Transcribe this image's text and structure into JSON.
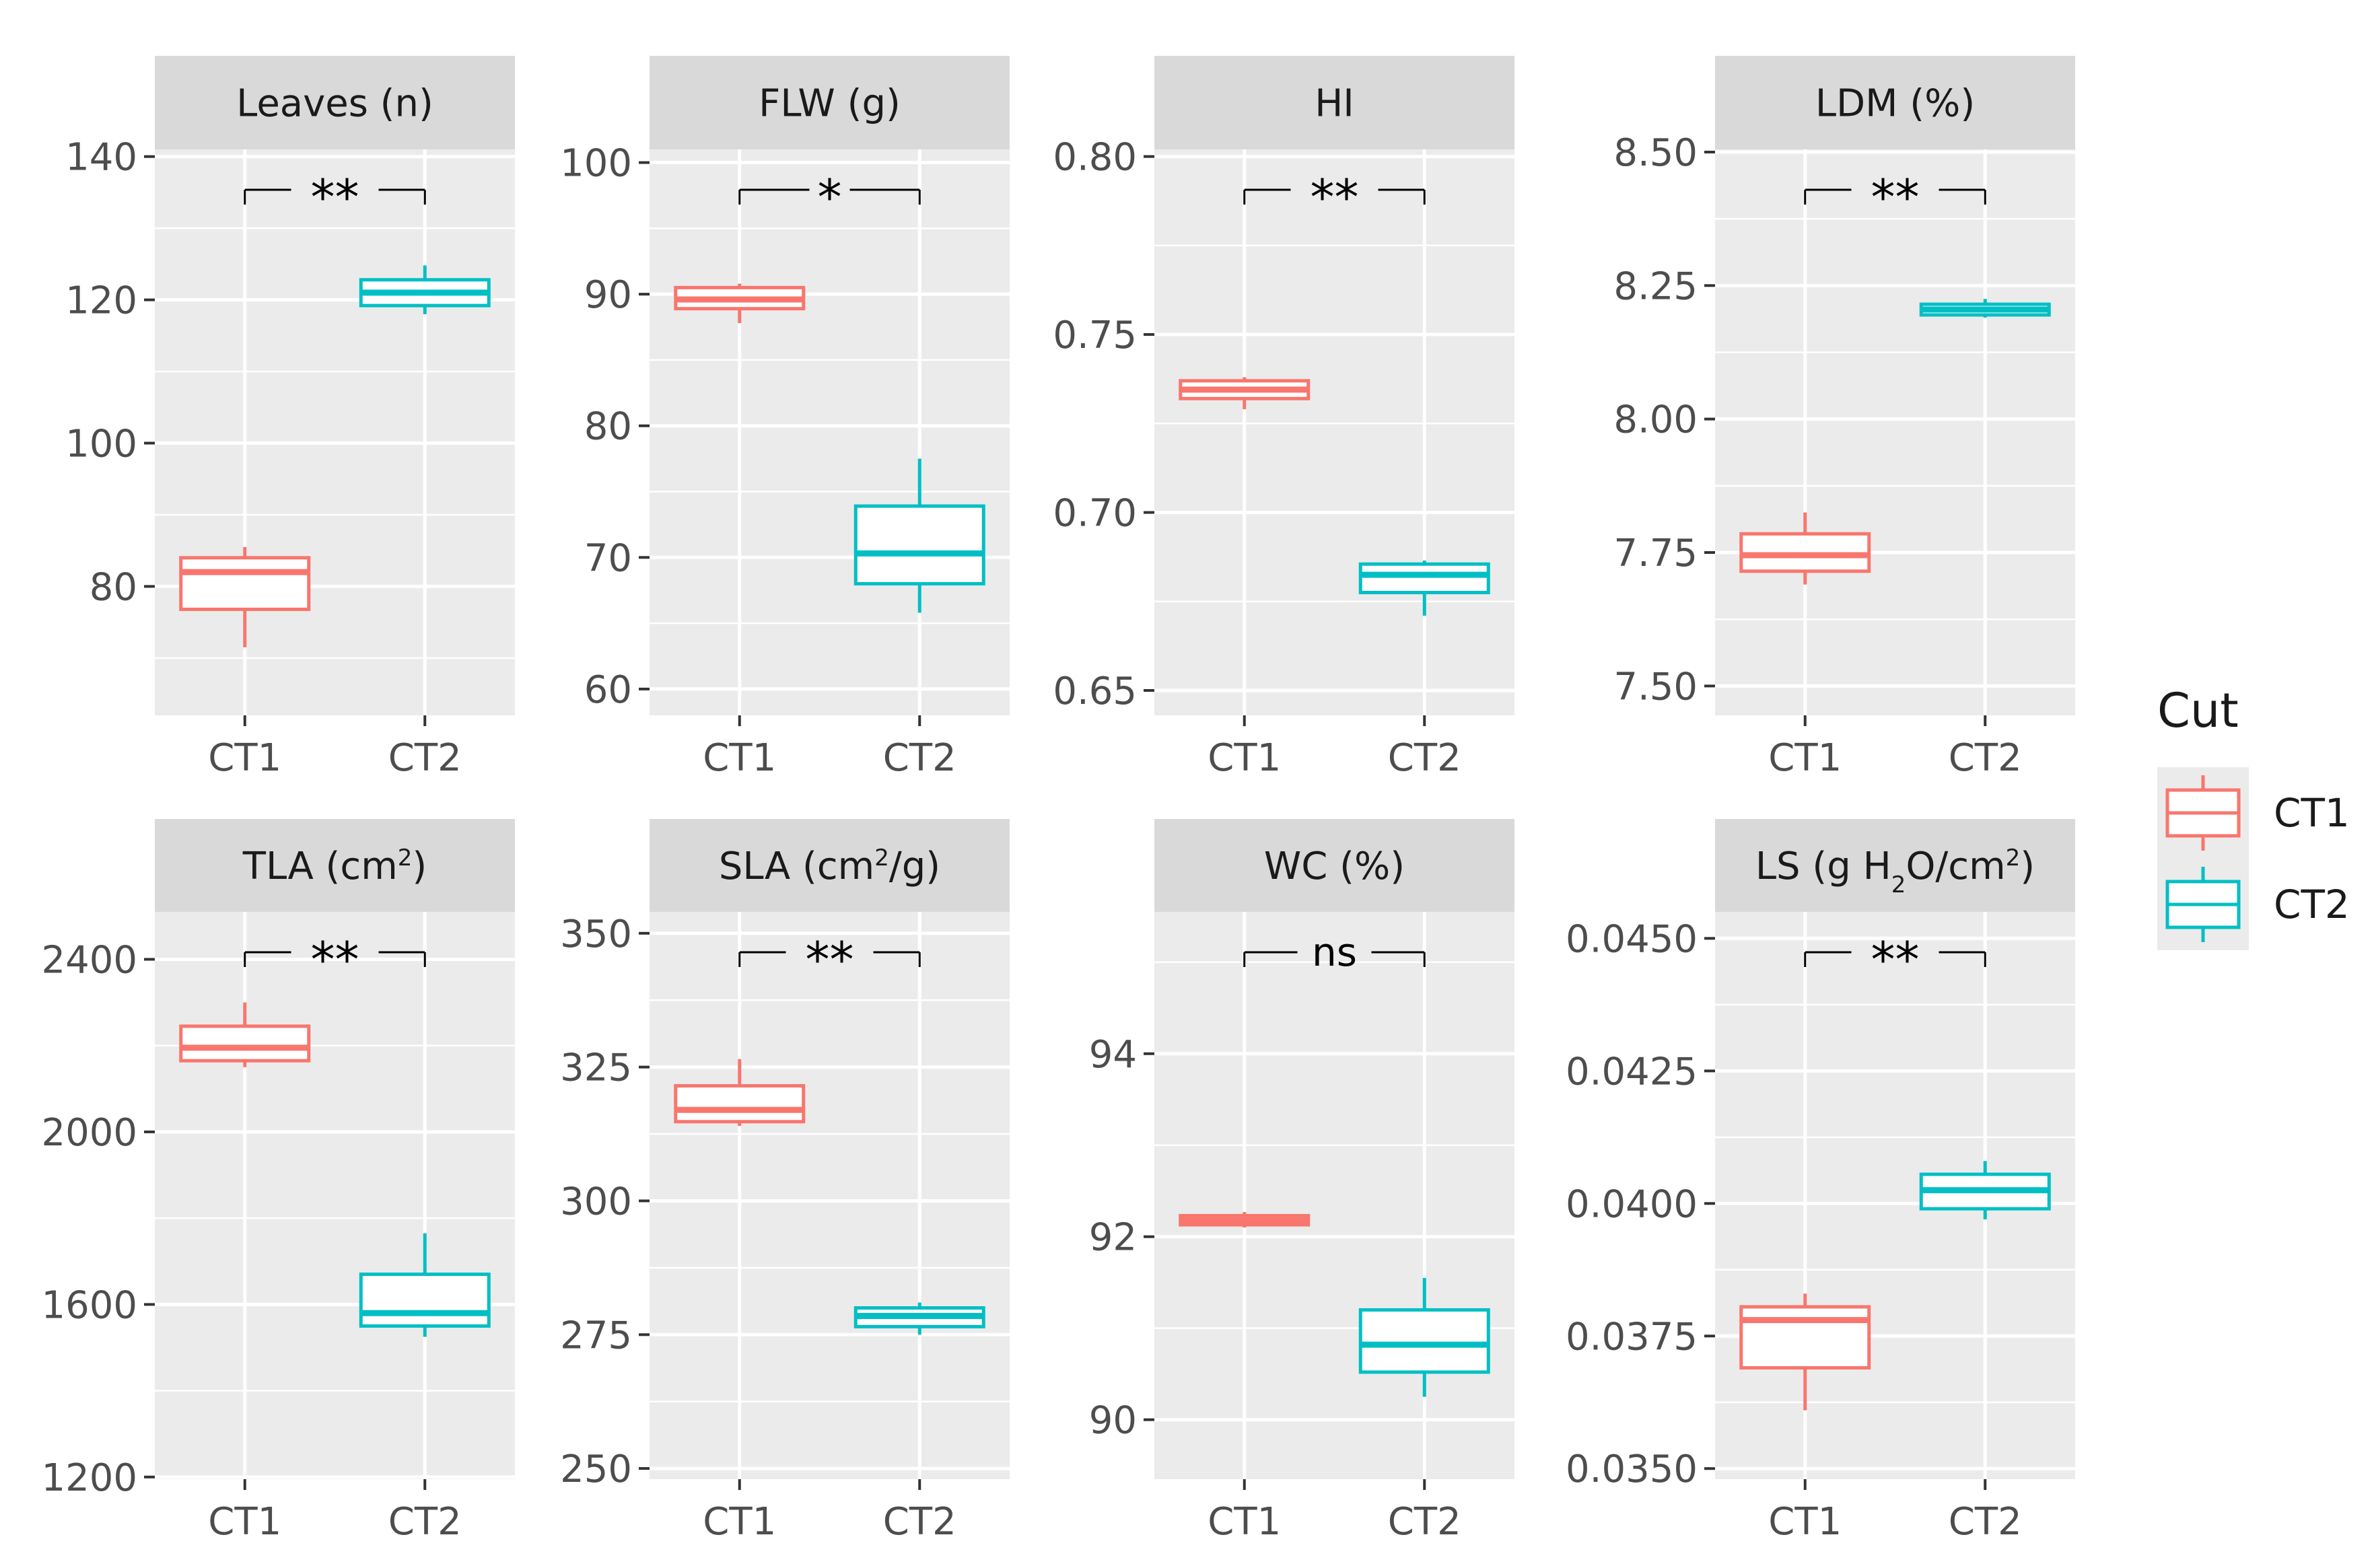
{
  "chart_data": [
    {
      "type": "boxplot",
      "title": "Leaves (n)",
      "categories": [
        "CT1",
        "CT2"
      ],
      "ylim": [
        62,
        141
      ],
      "yticks": [
        80,
        100,
        120,
        140
      ],
      "yticklabels": [
        "80",
        "100",
        "120",
        "140"
      ],
      "significance": "**",
      "series": [
        {
          "name": "CT1",
          "min": 71.5,
          "q1": 76.8,
          "median": 82.0,
          "q3": 84.0,
          "max": 85.5
        },
        {
          "name": "CT2",
          "min": 118.0,
          "q1": 119.2,
          "median": 121.0,
          "q3": 122.8,
          "max": 124.8
        }
      ]
    },
    {
      "type": "boxplot",
      "title": "FLW (g)",
      "categories": [
        "CT1",
        "CT2"
      ],
      "ylim": [
        58,
        101
      ],
      "yticks": [
        60,
        70,
        80,
        90,
        100
      ],
      "yticklabels": [
        "60",
        "70",
        "80",
        "90",
        "100"
      ],
      "significance": "*",
      "series": [
        {
          "name": "CT1",
          "min": 87.8,
          "q1": 88.9,
          "median": 89.6,
          "q3": 90.5,
          "max": 90.8
        },
        {
          "name": "CT2",
          "min": 65.8,
          "q1": 68.0,
          "median": 70.3,
          "q3": 73.9,
          "max": 77.5
        }
      ]
    },
    {
      "type": "boxplot",
      "title": "HI",
      "categories": [
        "CT1",
        "CT2"
      ],
      "ylim": [
        0.643,
        0.802
      ],
      "yticks": [
        0.65,
        0.7,
        0.75,
        0.8
      ],
      "yticklabels": [
        "0.65",
        "0.70",
        "0.75",
        "0.80"
      ],
      "significance": "**",
      "series": [
        {
          "name": "CT1",
          "min": 0.729,
          "q1": 0.732,
          "median": 0.7345,
          "q3": 0.737,
          "max": 0.738
        },
        {
          "name": "CT2",
          "min": 0.671,
          "q1": 0.6775,
          "median": 0.6825,
          "q3": 0.6855,
          "max": 0.6865
        }
      ]
    },
    {
      "type": "boxplot",
      "title": "LDM (%)",
      "categories": [
        "CT1",
        "CT2"
      ],
      "ylim": [
        7.445,
        8.505
      ],
      "yticks": [
        7.5,
        7.75,
        8.0,
        8.25,
        8.5
      ],
      "yticklabels": [
        "7.50",
        "7.75",
        "8.00",
        "8.25",
        "8.50"
      ],
      "significance": "**",
      "series": [
        {
          "name": "CT1",
          "min": 7.69,
          "q1": 7.715,
          "median": 7.745,
          "q3": 7.785,
          "max": 7.825
        },
        {
          "name": "CT2",
          "min": 8.19,
          "q1": 8.195,
          "median": 8.205,
          "q3": 8.215,
          "max": 8.225
        }
      ]
    },
    {
      "type": "boxplot",
      "title": "TLA (cm²)",
      "title_base": "TLA (cm",
      "title_sup": "2",
      "title_end": ")",
      "categories": [
        "CT1",
        "CT2"
      ],
      "ylim": [
        1195,
        2510
      ],
      "yticks": [
        1200,
        1600,
        2000,
        2400
      ],
      "yticklabels": [
        "1200",
        "1600",
        "2000",
        "2400"
      ],
      "significance": "**",
      "series": [
        {
          "name": "CT1",
          "min": 2150,
          "q1": 2165,
          "median": 2195,
          "q3": 2245,
          "max": 2300
        },
        {
          "name": "CT2",
          "min": 1525,
          "q1": 1550,
          "median": 1580,
          "q3": 1670,
          "max": 1765
        }
      ]
    },
    {
      "type": "boxplot",
      "title": "SLA (cm²/g)",
      "title_base": "SLA (cm",
      "title_sup": "2",
      "title_end": "/g)",
      "categories": [
        "CT1",
        "CT2"
      ],
      "ylim": [
        248,
        354
      ],
      "yticks": [
        250,
        275,
        300,
        325,
        350
      ],
      "yticklabels": [
        "250",
        "275",
        "300",
        "325",
        "350"
      ],
      "significance": "**",
      "series": [
        {
          "name": "CT1",
          "min": 314.0,
          "q1": 314.8,
          "median": 317.0,
          "q3": 321.5,
          "max": 326.5
        },
        {
          "name": "CT2",
          "min": 275.0,
          "q1": 276.5,
          "median": 278.5,
          "q3": 280.0,
          "max": 281.0
        }
      ]
    },
    {
      "type": "boxplot",
      "title": "WC (%)",
      "categories": [
        "CT1",
        "CT2"
      ],
      "ylim": [
        89.35,
        95.55
      ],
      "yticks": [
        90,
        92,
        94
      ],
      "yticklabels": [
        "90",
        "92",
        "94"
      ],
      "significance": "ns",
      "series": [
        {
          "name": "CT1",
          "min": 92.1,
          "q1": 92.13,
          "median": 92.18,
          "q3": 92.23,
          "max": 92.27
        },
        {
          "name": "CT2",
          "min": 90.25,
          "q1": 90.52,
          "median": 90.82,
          "q3": 91.2,
          "max": 91.55
        }
      ]
    },
    {
      "type": "boxplot",
      "title": "LS (g H₂O/cm²)",
      "title_base": "LS (g H",
      "title_sub": "2",
      "title_mid": "O/cm",
      "title_sup": "2",
      "title_end": ")",
      "categories": [
        "CT1",
        "CT2"
      ],
      "ylim": [
        0.0348,
        0.0455
      ],
      "yticks": [
        0.035,
        0.0375,
        0.04,
        0.0425,
        0.045
      ],
      "yticklabels": [
        "0.0350",
        "0.0375",
        "0.0400",
        "0.0425",
        "0.0450"
      ],
      "significance": "**",
      "series": [
        {
          "name": "CT1",
          "min": 0.0361,
          "q1": 0.0369,
          "median": 0.0378,
          "q3": 0.03805,
          "max": 0.0383
        },
        {
          "name": "CT2",
          "min": 0.0397,
          "q1": 0.0399,
          "median": 0.04025,
          "q3": 0.04055,
          "max": 0.0408
        }
      ]
    }
  ],
  "legend": {
    "title": "Cut",
    "placement": "right",
    "items": [
      {
        "label": "CT1",
        "color": "#F8766D"
      },
      {
        "label": "CT2",
        "color": "#00BFC4"
      }
    ]
  },
  "colors": {
    "CT1": "#F8766D",
    "CT2": "#00BFC4",
    "panel_bg": "#EBEBEB",
    "strip_bg": "#D9D9D9",
    "grid": "#FFFFFF",
    "text": "#1A1A1A",
    "axis_text": "#4D4D4D",
    "tick": "#333333"
  }
}
